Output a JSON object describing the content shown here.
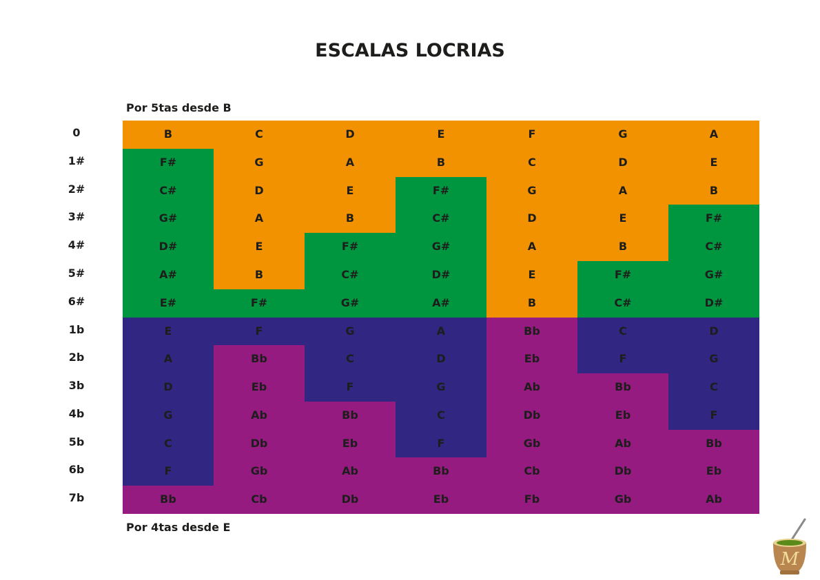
{
  "title": "ESCALAS LOCRIAS",
  "caption_top": "Por 5tas desde B",
  "caption_bottom": "Por 4tas desde E",
  "colors": {
    "natural_sharp_side": "#f39200",
    "sharp": "#009640",
    "natural_flat_side": "#312783",
    "flat": "#951b81",
    "text": "#1d1d1b"
  },
  "rows": [
    {
      "label": "0",
      "notes": [
        "B",
        "C",
        "D",
        "E",
        "F",
        "G",
        "A"
      ]
    },
    {
      "label": "1#",
      "notes": [
        "F#",
        "G",
        "A",
        "B",
        "C",
        "D",
        "E"
      ]
    },
    {
      "label": "2#",
      "notes": [
        "C#",
        "D",
        "E",
        "F#",
        "G",
        "A",
        "B"
      ]
    },
    {
      "label": "3#",
      "notes": [
        "G#",
        "A",
        "B",
        "C#",
        "D",
        "E",
        "F#"
      ]
    },
    {
      "label": "4#",
      "notes": [
        "D#",
        "E",
        "F#",
        "G#",
        "A",
        "B",
        "C#"
      ]
    },
    {
      "label": "5#",
      "notes": [
        "A#",
        "B",
        "C#",
        "D#",
        "E",
        "F#",
        "G#"
      ]
    },
    {
      "label": "6#",
      "notes": [
        "E#",
        "F#",
        "G#",
        "A#",
        "B",
        "C#",
        "D#"
      ]
    },
    {
      "label": "1b",
      "notes": [
        "E",
        "F",
        "G",
        "A",
        "Bb",
        "C",
        "D"
      ]
    },
    {
      "label": "2b",
      "notes": [
        "A",
        "Bb",
        "C",
        "D",
        "Eb",
        "F",
        "G"
      ]
    },
    {
      "label": "3b",
      "notes": [
        "D",
        "Eb",
        "F",
        "G",
        "Ab",
        "Bb",
        "C"
      ]
    },
    {
      "label": "4b",
      "notes": [
        "G",
        "Ab",
        "Bb",
        "C",
        "Db",
        "Eb",
        "F"
      ]
    },
    {
      "label": "5b",
      "notes": [
        "C",
        "Db",
        "Eb",
        "F",
        "Gb",
        "Ab",
        "Bb"
      ]
    },
    {
      "label": "6b",
      "notes": [
        "F",
        "Gb",
        "Ab",
        "Bb",
        "Cb",
        "Db",
        "Eb"
      ]
    },
    {
      "label": "7b",
      "notes": [
        "Bb",
        "Cb",
        "Db",
        "Eb",
        "Fb",
        "Gb",
        "Ab"
      ]
    }
  ],
  "logo": {
    "icon": "mate-cup-logo",
    "letter": "M"
  }
}
